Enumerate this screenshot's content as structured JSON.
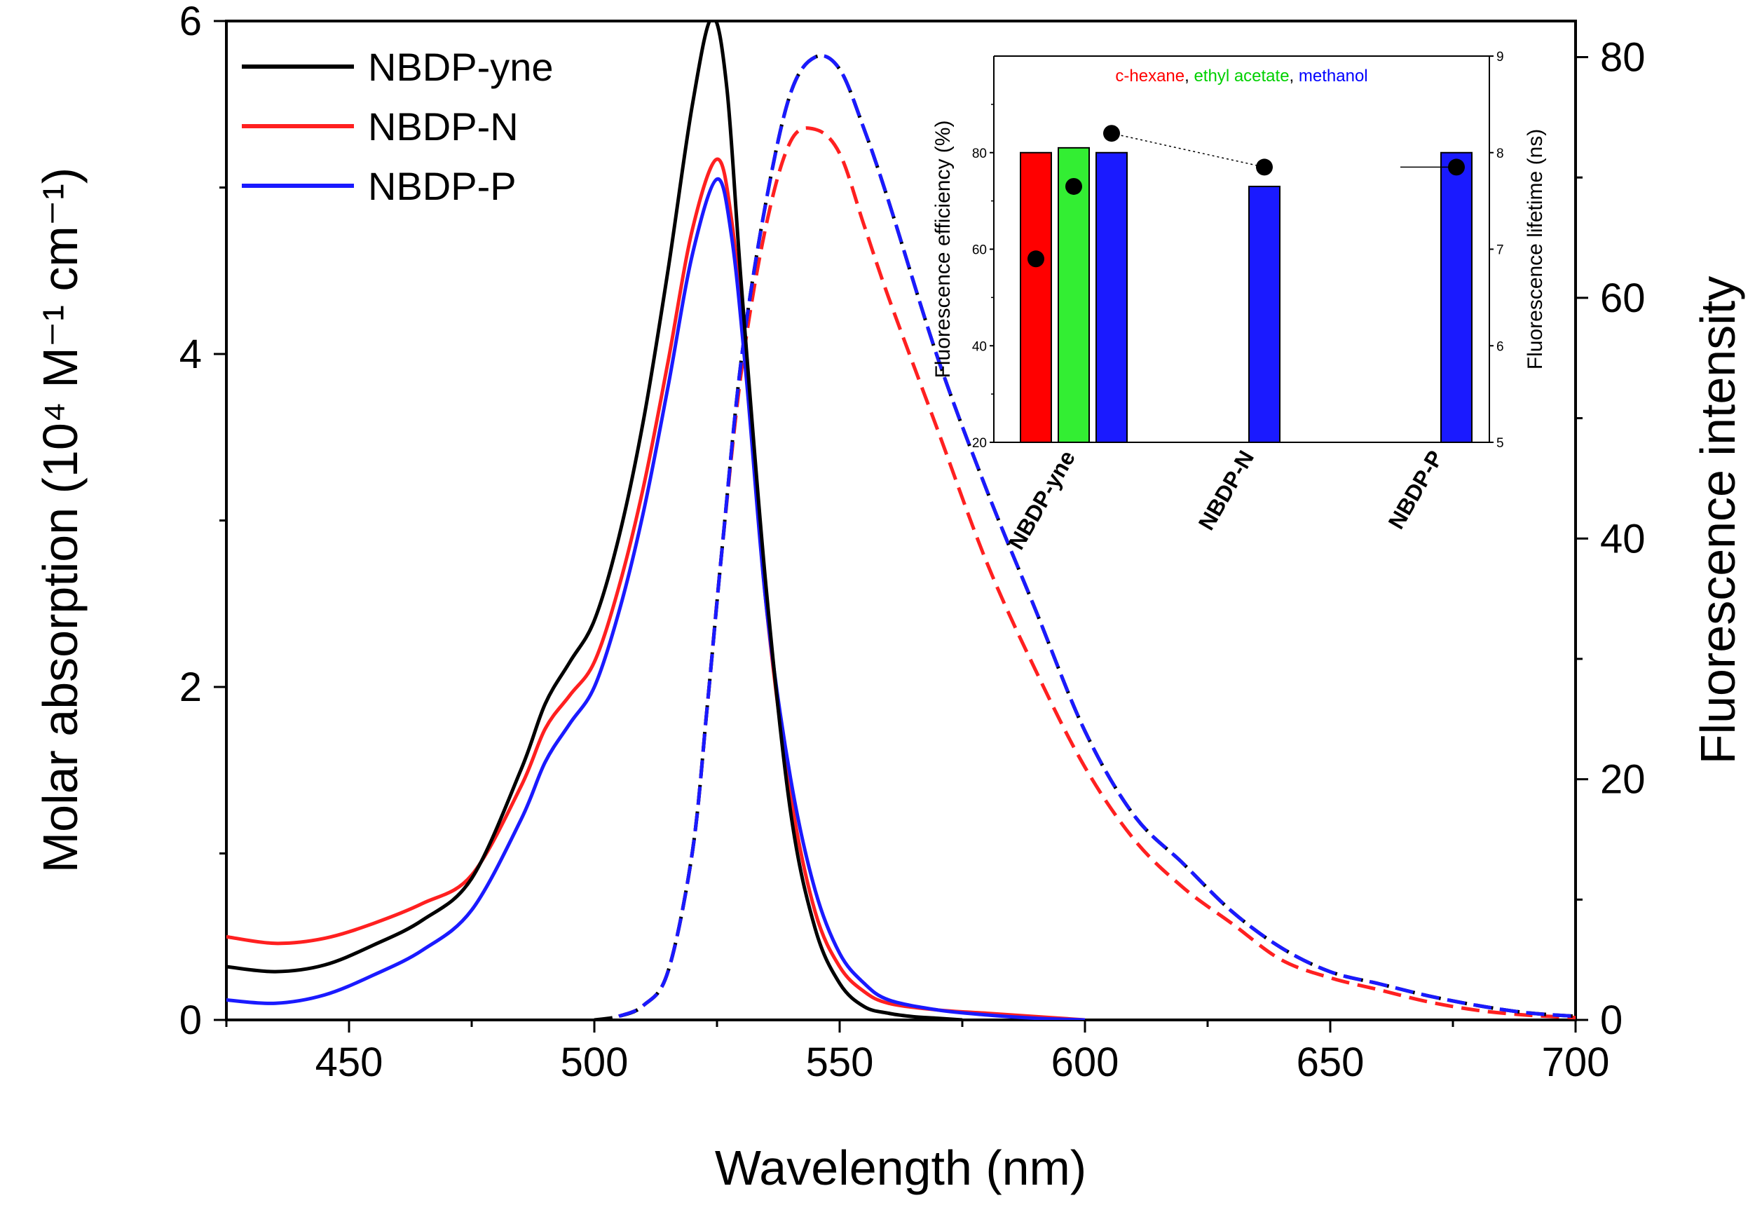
{
  "chart_data": [
    {
      "type": "line",
      "x_label": "Wavelength (nm)",
      "y_label_left": "Molar absorption (10⁴ M⁻¹ cm⁻¹)",
      "y_label_right": "Fluorescence intensity",
      "xlim": [
        425,
        700
      ],
      "ylim_left": [
        0,
        6
      ],
      "ylim_right": [
        0,
        83
      ],
      "x_ticks": [
        "450",
        "500",
        "550",
        "600",
        "650",
        "700"
      ],
      "y_ticks_left": [
        "0",
        "2",
        "4",
        "6"
      ],
      "y_ticks_right": [
        "0",
        "20",
        "40",
        "60",
        "80"
      ],
      "legend": [
        "NBDP-yne",
        "NBDP-N",
        "NBDP-P"
      ],
      "legend_position": "top-left",
      "colors": {
        "NBDP-yne": "#000000",
        "NBDP-N": "#ff2020",
        "NBDP-P": "#1a1aff"
      },
      "series": [
        {
          "name": "NBDP-yne",
          "kind": "absorption",
          "axis": "left",
          "style": "solid",
          "x": [
            425,
            435,
            445,
            455,
            465,
            475,
            485,
            490,
            495,
            500,
            505,
            510,
            515,
            520,
            524,
            527,
            530,
            535,
            540,
            545,
            550,
            555,
            560,
            565,
            570,
            575
          ],
          "y": [
            0.32,
            0.29,
            0.33,
            0.45,
            0.6,
            0.85,
            1.5,
            1.9,
            2.15,
            2.4,
            2.9,
            3.6,
            4.5,
            5.5,
            6.02,
            5.6,
            4.4,
            2.6,
            1.25,
            0.55,
            0.22,
            0.08,
            0.04,
            0.02,
            0.01,
            0.0
          ]
        },
        {
          "name": "NBDP-N",
          "kind": "absorption",
          "axis": "left",
          "style": "solid",
          "x": [
            425,
            435,
            445,
            455,
            465,
            475,
            485,
            490,
            495,
            500,
            505,
            510,
            515,
            520,
            525,
            528,
            531,
            535,
            540,
            545,
            550,
            555,
            560,
            570,
            580,
            590,
            600
          ],
          "y": [
            0.5,
            0.46,
            0.49,
            0.58,
            0.7,
            0.87,
            1.4,
            1.75,
            1.95,
            2.15,
            2.6,
            3.2,
            3.95,
            4.75,
            5.17,
            4.8,
            3.9,
            2.5,
            1.35,
            0.65,
            0.32,
            0.17,
            0.1,
            0.06,
            0.04,
            0.02,
            0.0
          ]
        },
        {
          "name": "NBDP-P",
          "kind": "absorption",
          "axis": "left",
          "style": "solid",
          "x": [
            425,
            435,
            445,
            455,
            465,
            475,
            485,
            490,
            495,
            500,
            505,
            510,
            515,
            520,
            525,
            528,
            531,
            535,
            540,
            545,
            550,
            555,
            560,
            570,
            580,
            590,
            600
          ],
          "y": [
            0.12,
            0.1,
            0.15,
            0.27,
            0.42,
            0.66,
            1.2,
            1.55,
            1.78,
            2.0,
            2.45,
            3.05,
            3.8,
            4.6,
            5.05,
            4.7,
            3.85,
            2.5,
            1.45,
            0.78,
            0.4,
            0.22,
            0.12,
            0.06,
            0.03,
            0.01,
            0.0
          ]
        },
        {
          "name": "NBDP-yne",
          "kind": "emission",
          "axis": "right",
          "style": "dashed",
          "x": [
            500,
            505,
            510,
            515,
            520,
            523,
            526,
            530,
            535,
            540,
            545,
            550,
            555,
            560,
            570,
            580,
            590,
            600,
            610,
            620,
            630,
            640,
            650,
            660,
            670,
            680,
            690,
            700
          ],
          "y": [
            0,
            0.3,
            1.2,
            4,
            14,
            26,
            39,
            55,
            68,
            77,
            80,
            79,
            74,
            68,
            55,
            44,
            34,
            24,
            17,
            13,
            9,
            6,
            4,
            3,
            2,
            1.2,
            0.6,
            0.3
          ]
        },
        {
          "name": "NBDP-N",
          "kind": "emission",
          "axis": "right",
          "style": "dashed",
          "x": [
            505,
            510,
            515,
            520,
            523,
            526,
            530,
            535,
            540,
            545,
            550,
            555,
            560,
            570,
            580,
            590,
            600,
            610,
            620,
            630,
            640,
            650,
            660,
            670,
            680,
            690,
            700
          ],
          "y": [
            0.3,
            1.2,
            4,
            14,
            26,
            39,
            54,
            66,
            73,
            74,
            72,
            66,
            60,
            49,
            38,
            29,
            21,
            15,
            11,
            8,
            5,
            3.5,
            2.5,
            1.5,
            0.8,
            0.4,
            0.2
          ]
        },
        {
          "name": "NBDP-P",
          "kind": "emission",
          "axis": "right",
          "style": "dashed",
          "x": [
            505,
            510,
            515,
            520,
            523,
            526,
            530,
            535,
            540,
            545,
            550,
            555,
            560,
            570,
            580,
            590,
            600,
            610,
            620,
            630,
            640,
            650,
            660,
            670,
            680,
            690,
            700
          ],
          "y": [
            0.3,
            1.2,
            4,
            14,
            26,
            39,
            55,
            68,
            77,
            80,
            79,
            74,
            68,
            55,
            44,
            34,
            24,
            17,
            13,
            9,
            6,
            4,
            3,
            2,
            1.2,
            0.6,
            0.3
          ]
        }
      ]
    },
    {
      "type": "bar",
      "subtype": "inset",
      "categories": [
        "NBDP-yne",
        "NBDP-N",
        "NBDP-P"
      ],
      "y_label_left": "Fluorescence efficiency (%)",
      "y_label_right": "Fluorescence lifetime (ns)",
      "ylim_left": [
        20,
        100
      ],
      "ylim_right": [
        5,
        9
      ],
      "y_ticks_left": [
        "20",
        "40",
        "60",
        "80"
      ],
      "y_ticks_right": [
        "5",
        "6",
        "7",
        "8",
        "9"
      ],
      "legend": [
        "c-hexane",
        "ethyl acetate",
        "methanol"
      ],
      "legend_separators": [
        ",",
        ","
      ],
      "legend_colors": {
        "c-hexane": "#ff0000",
        "ethyl acetate": "#00d000",
        "methanol": "#0000ff"
      },
      "bars": [
        {
          "category": "NBDP-yne",
          "solvent": "c-hexane",
          "efficiency": 80,
          "color": "#ff0000"
        },
        {
          "category": "NBDP-yne",
          "solvent": "ethyl acetate",
          "efficiency": 81,
          "color": "#33ee33"
        },
        {
          "category": "NBDP-yne",
          "solvent": "methanol",
          "efficiency": 80,
          "color": "#1a1aff"
        },
        {
          "category": "NBDP-N",
          "solvent": "methanol",
          "efficiency": 73,
          "color": "#1a1aff"
        },
        {
          "category": "NBDP-P",
          "solvent": "methanol",
          "efficiency": 80,
          "color": "#1a1aff"
        }
      ],
      "lifetime_points": [
        {
          "category": "NBDP-yne",
          "solvent": "c-hexane",
          "lifetime": 6.9
        },
        {
          "category": "NBDP-yne",
          "solvent": "ethyl acetate",
          "lifetime": 7.65
        },
        {
          "category": "NBDP-yne",
          "solvent": "methanol",
          "lifetime": 8.2
        },
        {
          "category": "NBDP-N",
          "solvent": "methanol",
          "lifetime": 7.85
        },
        {
          "category": "NBDP-P",
          "solvent": "methanol",
          "lifetime": 7.85
        }
      ]
    }
  ]
}
